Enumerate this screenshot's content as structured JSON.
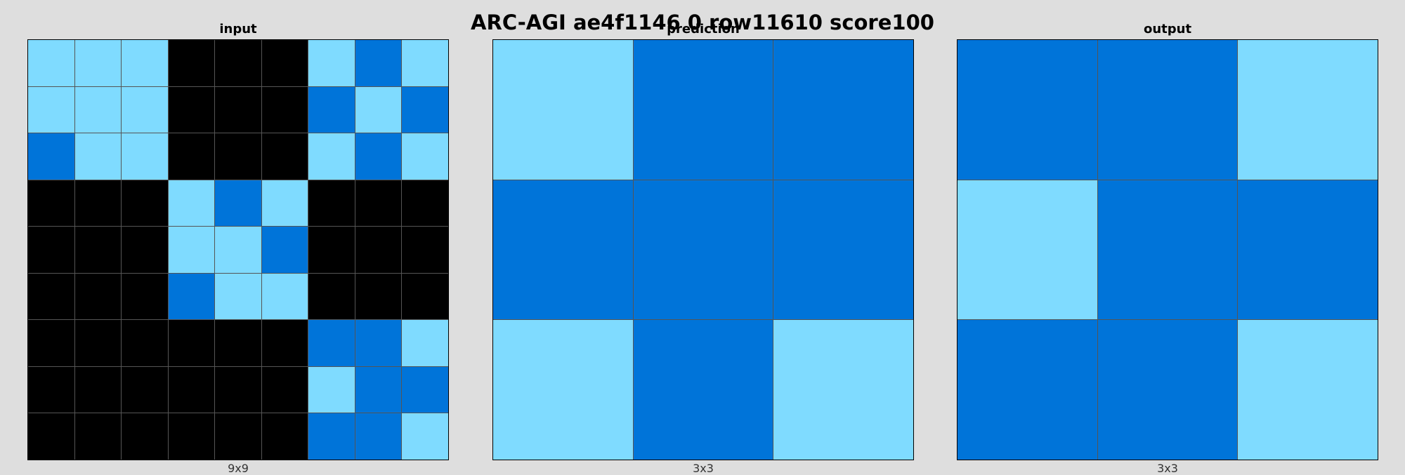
{
  "title": "ARC-AGI ae4f1146 0 row11610 score100",
  "palette": {
    "0": "#000000",
    "1": "#0074D9",
    "8": "#7FDBFF"
  },
  "panels": [
    {
      "label": "input",
      "dims": "9x9",
      "grid": [
        [
          8,
          8,
          8,
          0,
          0,
          0,
          8,
          1,
          8
        ],
        [
          8,
          8,
          8,
          0,
          0,
          0,
          1,
          8,
          1
        ],
        [
          1,
          8,
          8,
          0,
          0,
          0,
          8,
          1,
          8
        ],
        [
          0,
          0,
          0,
          8,
          1,
          8,
          0,
          0,
          0
        ],
        [
          0,
          0,
          0,
          8,
          8,
          1,
          0,
          0,
          0
        ],
        [
          0,
          0,
          0,
          1,
          8,
          8,
          0,
          0,
          0
        ],
        [
          0,
          0,
          0,
          0,
          0,
          0,
          1,
          1,
          8
        ],
        [
          0,
          0,
          0,
          0,
          0,
          0,
          8,
          1,
          1
        ],
        [
          0,
          0,
          0,
          0,
          0,
          0,
          1,
          1,
          8
        ]
      ]
    },
    {
      "label": "prediction",
      "dims": "3x3",
      "grid": [
        [
          8,
          1,
          1
        ],
        [
          1,
          1,
          1
        ],
        [
          8,
          1,
          8
        ]
      ]
    },
    {
      "label": "output",
      "dims": "3x3",
      "grid": [
        [
          1,
          1,
          8
        ],
        [
          8,
          1,
          1
        ],
        [
          1,
          1,
          8
        ]
      ]
    }
  ]
}
